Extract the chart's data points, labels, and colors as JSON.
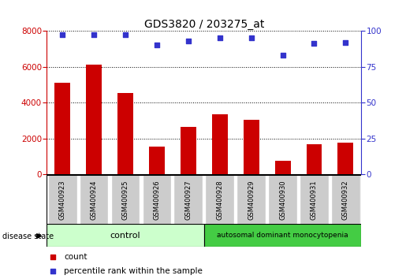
{
  "title": "GDS3820 / 203275_at",
  "samples": [
    "GSM400923",
    "GSM400924",
    "GSM400925",
    "GSM400926",
    "GSM400927",
    "GSM400928",
    "GSM400929",
    "GSM400930",
    "GSM400931",
    "GSM400932"
  ],
  "counts": [
    5100,
    6100,
    4550,
    1550,
    2650,
    3350,
    3050,
    750,
    1700,
    1750
  ],
  "percentiles": [
    97,
    97,
    97,
    90,
    93,
    95,
    95,
    83,
    91,
    92
  ],
  "control_count": 5,
  "disease_count": 5,
  "control_label": "control",
  "disease_label": "autosomal dominant monocytopenia",
  "disease_state_label": "disease state",
  "left_ylim": [
    0,
    8000
  ],
  "right_ylim": [
    0,
    100
  ],
  "left_yticks": [
    0,
    2000,
    4000,
    6000,
    8000
  ],
  "right_yticks": [
    0,
    25,
    50,
    75,
    100
  ],
  "bar_color": "#cc0000",
  "dot_color": "#3333cc",
  "control_bg_light": "#ccffcc",
  "control_bg_dark": "#44cc44",
  "xticklabel_bg": "#cccccc",
  "legend_count_label": "count",
  "legend_pct_label": "percentile rank within the sample",
  "grid_color": "#000000",
  "fig_bg": "#ffffff",
  "border_color": "#000000"
}
